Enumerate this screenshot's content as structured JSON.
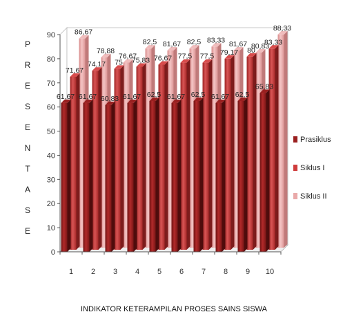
{
  "chart_data": {
    "type": "bar",
    "style": "3d-clustered-column",
    "title": "",
    "xlabel": "INDIKATOR KETERAMPILAN PROSES SAINS SISWA",
    "ylabel": "PRESENTASE",
    "categories": [
      "1",
      "2",
      "3",
      "4",
      "5",
      "6",
      "7",
      "8",
      "9",
      "10"
    ],
    "ylim": [
      0,
      90
    ],
    "yticks": [
      "0",
      "10",
      "20",
      "30",
      "40",
      "50",
      "60",
      "70",
      "80",
      "90"
    ],
    "grid": false,
    "legend_position": "right",
    "series": [
      {
        "name": "Prasiklus",
        "color": "#8b1a1a",
        "values": [
          61.67,
          61.67,
          60.83,
          61.67,
          62.5,
          61.67,
          62.5,
          61.67,
          62.5,
          65.83
        ],
        "labels": [
          "61,67",
          "61,67",
          "60,83",
          "61,67",
          "62,5",
          "61,67",
          "62,5",
          "61,67",
          "62,5",
          "65,83"
        ]
      },
      {
        "name": "Siklus I",
        "color": "#c43a3a",
        "values": [
          71.67,
          74.17,
          75,
          75.83,
          76.67,
          77.5,
          77.5,
          79.17,
          80,
          83.33
        ],
        "labels": [
          "71,67",
          "74,17",
          "75",
          "75,83",
          "76,67",
          "77,5",
          "77,5",
          "79,17",
          "80",
          "83,33"
        ]
      },
      {
        "name": "Siklus II",
        "color": "#e8a6a6",
        "values": [
          86.67,
          78.88,
          76.67,
          82.5,
          81.67,
          82.5,
          83.33,
          81.67,
          80.83,
          88.33
        ],
        "labels": [
          "86,67",
          "78,88",
          "76,67",
          "82,5",
          "81,67",
          "82,5",
          "83,33",
          "81,67",
          "80,83",
          "88,33"
        ]
      }
    ]
  }
}
